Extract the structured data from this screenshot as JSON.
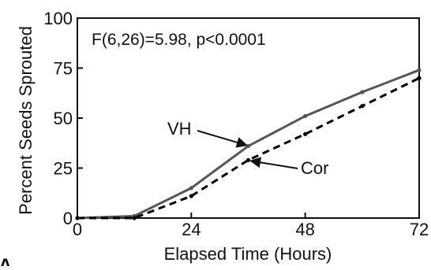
{
  "chart_data": {
    "type": "line",
    "xlabel": "Elapsed Time (Hours)",
    "ylabel": "Percent Seeds Sprouted",
    "xlim": [
      0,
      72
    ],
    "ylim": [
      0,
      100
    ],
    "xticks": [
      0,
      24,
      48,
      72
    ],
    "yticks": [
      0,
      25,
      50,
      75,
      100
    ],
    "grid": false,
    "annotation": "F(6,26)=5.98, p<0.0001",
    "panel_label": "A",
    "series": [
      {
        "name": "VH",
        "line_style": "solid",
        "color": "#555555",
        "x": [
          0,
          12,
          24,
          36,
          48,
          60,
          72
        ],
        "y": [
          0,
          1,
          15,
          36,
          51,
          63,
          74
        ]
      },
      {
        "name": "Cor",
        "line_style": "dashed",
        "color": "#000000",
        "x": [
          0,
          12,
          24,
          36,
          48,
          60,
          72
        ],
        "y": [
          0,
          0,
          11,
          29,
          42,
          56,
          70
        ]
      }
    ],
    "annotation_arrows": [
      {
        "label": "VH",
        "target_x": 36,
        "target_y": 36
      },
      {
        "label": "Cor",
        "target_x": 36,
        "target_y": 29
      }
    ]
  }
}
